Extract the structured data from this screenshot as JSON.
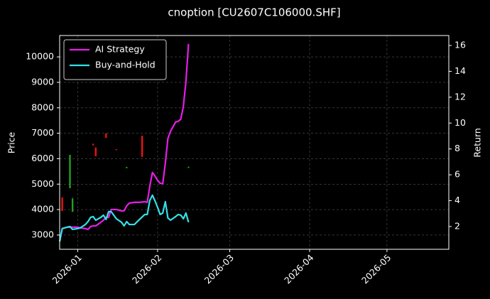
{
  "chart_data": {
    "type": "line",
    "title": "cnoption [CU2607C106000.SHF]",
    "ylabel": "Price",
    "y2label": "Return",
    "x": [
      -7,
      -6,
      -4,
      -3,
      -2,
      0,
      1,
      3,
      4,
      5,
      6,
      7,
      9,
      10,
      11,
      12,
      13,
      15,
      17,
      18,
      19,
      20,
      22,
      24,
      26,
      27,
      28,
      29,
      30,
      31,
      32,
      33,
      34,
      35,
      36,
      38,
      39,
      40,
      41,
      42,
      43
    ],
    "series": [
      {
        "name": "AI Strategy",
        "color": "#e61ee6",
        "axis": "y2",
        "values": [
          0.85,
          1.84,
          1.95,
          1.95,
          1.95,
          1.95,
          1.89,
          1.84,
          1.78,
          2.0,
          2.05,
          2.05,
          2.33,
          2.49,
          2.71,
          2.71,
          3.32,
          3.32,
          3.21,
          3.21,
          3.59,
          3.81,
          3.87,
          3.87,
          3.92,
          3.87,
          5.13,
          6.18,
          5.9,
          5.57,
          5.35,
          5.3,
          6.89,
          8.81,
          9.36,
          10.08,
          10.14,
          10.3,
          11.29,
          13.21,
          16.12
        ]
      },
      {
        "name": "Buy-and-Hold",
        "color": "#33e0e8",
        "axis": "y2",
        "values": [
          0.85,
          1.84,
          1.95,
          2.0,
          1.78,
          1.84,
          1.89,
          2.16,
          2.38,
          2.71,
          2.77,
          2.49,
          2.71,
          2.88,
          2.55,
          3.15,
          3.15,
          2.6,
          2.33,
          2.05,
          2.38,
          2.16,
          2.16,
          2.55,
          2.93,
          2.93,
          4.03,
          4.42,
          3.98,
          3.48,
          2.93,
          3.04,
          3.92,
          2.66,
          2.49,
          2.77,
          2.93,
          2.88,
          2.6,
          3.04,
          2.33
        ]
      }
    ],
    "candles": {
      "x": [
        -6,
        -3,
        -2,
        6,
        7,
        11,
        15,
        19,
        25,
        43
      ],
      "open": [
        4478,
        4840,
        3920,
        6580,
        6430,
        6990,
        6370,
        5630,
        6900,
        5640
      ],
      "high": [
        4478,
        6150,
        4480,
        6600,
        6450,
        7000,
        6380,
        5680,
        6900,
        5690
      ],
      "low": [
        3948,
        4840,
        3900,
        6520,
        6090,
        6810,
        6330,
        5620,
        6070,
        5630
      ],
      "close": [
        3948,
        6150,
        4420,
        6530,
        6100,
        6820,
        6340,
        5670,
        6070,
        5680
      ],
      "up_color": "#22a022",
      "down_color": "#ee1111"
    },
    "xlim": [
      -7,
      144
    ],
    "xticks": [
      {
        "value": 0,
        "label": "2026-01"
      },
      {
        "value": 31,
        "label": "2026-02"
      },
      {
        "value": 59,
        "label": "2026-03"
      },
      {
        "value": 90,
        "label": "2026-04"
      },
      {
        "value": 120,
        "label": "2026-05"
      }
    ],
    "ylim": [
      2440,
      10840
    ],
    "yticks": [
      3000,
      4000,
      5000,
      6000,
      7000,
      8000,
      9000,
      10000
    ],
    "y2lim": [
      0.24,
      16.77
    ],
    "y2ticks": [
      2,
      4,
      6,
      8,
      10,
      12,
      14,
      16
    ],
    "grid": true,
    "legend": "upper left"
  }
}
